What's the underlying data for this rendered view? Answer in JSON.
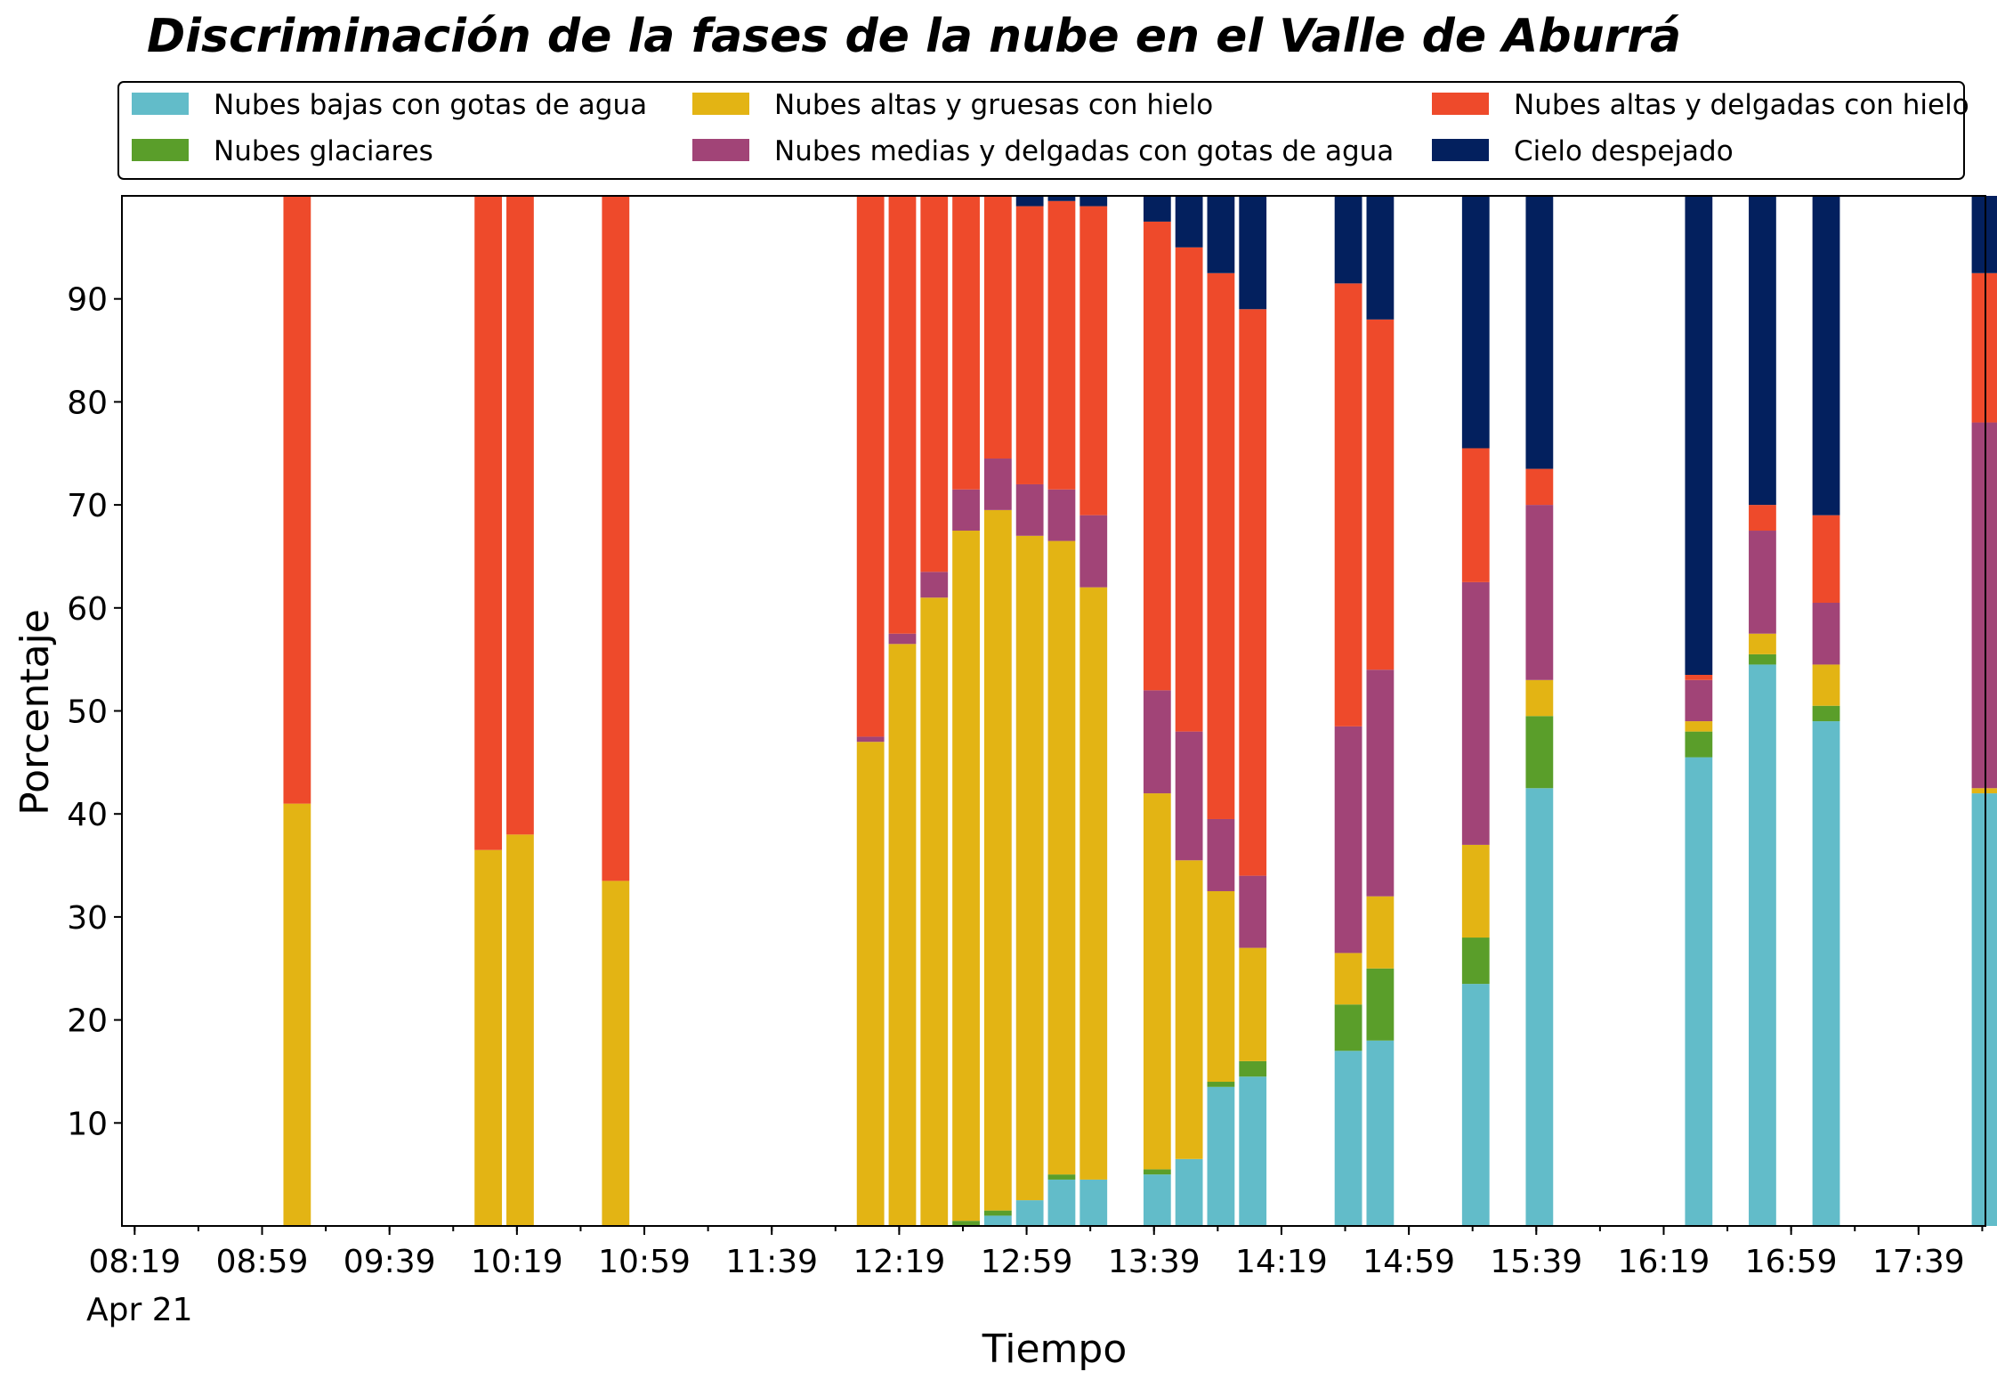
{
  "chart_data": {
    "type": "bar",
    "stacked": true,
    "title": "Discriminación de la fases de la nube en el Valle de Aburrá",
    "xlabel": "Tiempo",
    "ylabel": "Porcentaje",
    "ylim": [
      0,
      100
    ],
    "y_ticks": [
      10,
      20,
      30,
      40,
      50,
      60,
      70,
      80,
      90
    ],
    "x_ticks": [
      "08:19",
      "08:59",
      "09:39",
      "10:19",
      "10:59",
      "11:39",
      "12:19",
      "12:59",
      "13:39",
      "14:19",
      "14:59",
      "15:39",
      "16:19",
      "16:59",
      "17:39"
    ],
    "x_date_label": "Apr 21",
    "x_range": [
      "08:15",
      "18:00"
    ],
    "legend_position": "top",
    "grid": false,
    "series": [
      {
        "name": "Nubes bajas con gotas de agua",
        "color": "#62BCC9"
      },
      {
        "name": "Nubes glaciares",
        "color": "#5A9E2A"
      },
      {
        "name": "Nubes altas y gruesas con hielo",
        "color": "#E3B414"
      },
      {
        "name": "Nubes medias y delgadas con gotas de agua",
        "color": "#A14477"
      },
      {
        "name": "Nubes altas y delgadas con hielo",
        "color": "#EE4A2B"
      },
      {
        "name": "Cielo despejado",
        "color": "#03205E"
      }
    ],
    "bars": [
      {
        "time": "09:10",
        "values": [
          0,
          0,
          41,
          0,
          59,
          0
        ]
      },
      {
        "time": "10:10",
        "values": [
          0,
          0,
          36.5,
          0,
          63.5,
          0
        ]
      },
      {
        "time": "10:20",
        "values": [
          0,
          0,
          38,
          0,
          62,
          0
        ]
      },
      {
        "time": "10:50",
        "values": [
          0,
          0,
          33.5,
          0,
          66.5,
          0
        ]
      },
      {
        "time": "12:10",
        "values": [
          0,
          0,
          47,
          0.5,
          52.5,
          0
        ]
      },
      {
        "time": "12:20",
        "values": [
          0,
          0,
          56.5,
          1,
          42.5,
          0
        ]
      },
      {
        "time": "12:30",
        "values": [
          0,
          0,
          61,
          2.5,
          36.5,
          0
        ]
      },
      {
        "time": "12:40",
        "values": [
          0,
          0.5,
          67,
          4,
          28.5,
          0
        ]
      },
      {
        "time": "12:50",
        "values": [
          1,
          0.5,
          68,
          5,
          25.5,
          0
        ]
      },
      {
        "time": "13:00",
        "values": [
          2.5,
          0,
          64.5,
          5,
          27,
          1
        ]
      },
      {
        "time": "13:10",
        "values": [
          4.5,
          0.5,
          61.5,
          5,
          28,
          0.5
        ]
      },
      {
        "time": "13:20",
        "values": [
          4.5,
          0,
          57.5,
          7,
          30,
          1
        ]
      },
      {
        "time": "13:40",
        "values": [
          5,
          0.5,
          36.5,
          10,
          45.5,
          2.5
        ]
      },
      {
        "time": "13:50",
        "values": [
          6.5,
          0,
          29,
          12.5,
          47,
          5
        ]
      },
      {
        "time": "14:00",
        "values": [
          13.5,
          0.5,
          18.5,
          7,
          53,
          7.5
        ]
      },
      {
        "time": "14:10",
        "values": [
          14.5,
          1.5,
          11,
          7,
          55,
          11
        ]
      },
      {
        "time": "14:40",
        "values": [
          17,
          4.5,
          5,
          22,
          43,
          8.5
        ]
      },
      {
        "time": "14:50",
        "values": [
          18,
          7,
          7,
          22,
          34,
          12
        ]
      },
      {
        "time": "15:20",
        "values": [
          23.5,
          4.5,
          9,
          25.5,
          13,
          24.5
        ]
      },
      {
        "time": "15:40",
        "values": [
          42.5,
          7,
          3.5,
          17,
          3.5,
          26.5
        ]
      },
      {
        "time": "16:30",
        "values": [
          45.5,
          2.5,
          1,
          4,
          0.5,
          46.5
        ]
      },
      {
        "time": "16:50",
        "values": [
          54.5,
          1,
          2,
          10,
          2.5,
          30
        ]
      },
      {
        "time": "17:10",
        "values": [
          49,
          1.5,
          4,
          6,
          8.5,
          31
        ]
      },
      {
        "time": "18:00",
        "values": [
          42,
          0,
          0.5,
          35.5,
          14.5,
          7.5
        ]
      }
    ]
  }
}
